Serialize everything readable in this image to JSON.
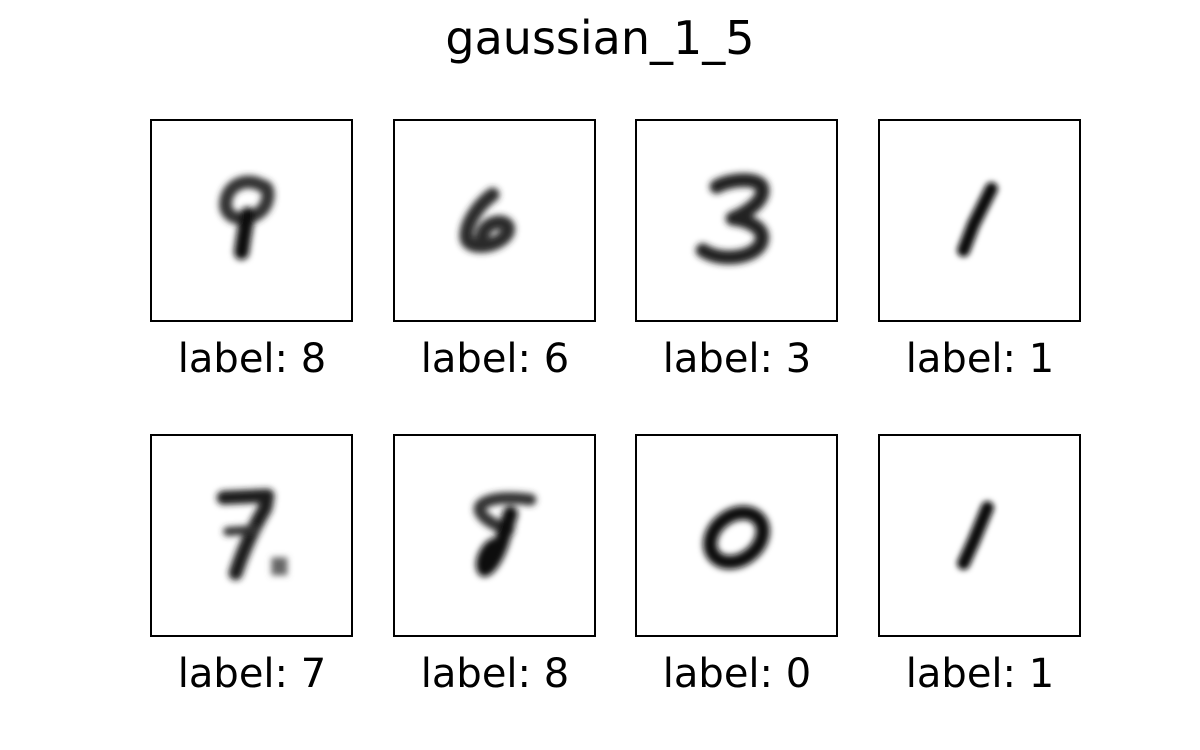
{
  "title": "gaussian_1_5",
  "panels": [
    {
      "label": "label: 8"
    },
    {
      "label": "label: 6"
    },
    {
      "label": "label: 3"
    },
    {
      "label": "label: 1"
    },
    {
      "label": "label: 7"
    },
    {
      "label": "label: 8"
    },
    {
      "label": "label: 0"
    },
    {
      "label": "label: 1"
    }
  ]
}
